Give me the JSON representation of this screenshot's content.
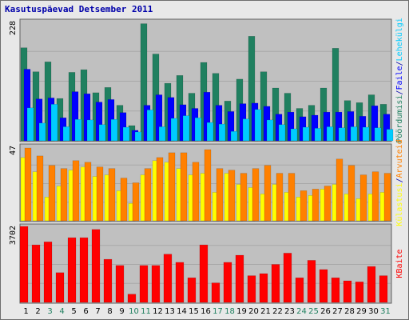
{
  "chart_data": {
    "type": "bar",
    "title": "Kasutuspäevad Detsember 2011",
    "categories": [
      "1",
      "2",
      "3",
      "4",
      "5",
      "6",
      "7",
      "8",
      "9",
      "10",
      "11",
      "12",
      "13",
      "14",
      "15",
      "16",
      "17",
      "18",
      "19",
      "20",
      "21",
      "22",
      "23",
      "24",
      "25",
      "26",
      "27",
      "28",
      "29",
      "30",
      "31"
    ],
    "weekend_days": [
      "3",
      "4",
      "10",
      "11",
      "17",
      "18",
      "24",
      "25",
      "31"
    ],
    "panels": [
      {
        "ymax_label": "228",
        "ymax": 228,
        "grid": true,
        "legend": [
          "Pöördumisi",
          "/",
          "Faile",
          "/",
          "Lehekülgi"
        ],
        "series": [
          {
            "name": "Pöördumisi",
            "color": "#208060",
            "values": [
              178,
              132,
              151,
              81,
              131,
              136,
              92,
              102,
              68,
              29,
              224,
              166,
              110,
              125,
              91,
              150,
              129,
              76,
              118,
              200,
              132,
              101,
              91,
              62,
              68,
              101,
              177,
              77,
              73,
              88,
              70
            ]
          },
          {
            "name": "Faile",
            "color": "#0000ff",
            "values": [
              137,
              80,
              82,
              44,
              94,
              90,
              74,
              79,
              54,
              20,
              68,
              88,
              83,
              69,
              62,
              93,
              68,
              56,
              71,
              72,
              66,
              51,
              55,
              46,
              49,
              55,
              55,
              56,
              47,
              67,
              51
            ]
          },
          {
            "name": "Lehekülgi",
            "color": "#00ccff",
            "values": [
              63,
              34,
              70,
              27,
              41,
              40,
              31,
              41,
              26,
              17,
              59,
              27,
              43,
              48,
              44,
              35,
              32,
              18,
              42,
              60,
              40,
              31,
              23,
              26,
              24,
              27,
              25,
              27,
              26,
              25,
              22
            ]
          }
        ]
      },
      {
        "ymax_label": "47",
        "ymax": 47,
        "grid": true,
        "legend": [
          "Külastusi",
          "/",
          "Arvuteid"
        ],
        "series": [
          {
            "name": "Külastusi",
            "color": "#ffff00",
            "values": [
              40,
              31,
              15,
              22,
              32,
              34,
              28,
              29,
              19,
              11,
              29,
              38,
              37,
              33,
              29,
              30,
              18,
              30,
              23,
              21,
              17,
              23,
              18,
              15,
              16,
              20,
              23,
              17,
              14,
              17,
              18
            ]
          },
          {
            "name": "Arvuteid",
            "color": "#ff8000",
            "values": [
              46,
              41,
              35,
              33,
              38,
              37,
              34,
              33,
              27,
              24,
              33,
              40,
              43,
              43,
              37,
              45,
              33,
              32,
              30,
              33,
              35,
              30,
              30,
              19,
              20,
              22,
              39,
              35,
              29,
              31,
              30
            ]
          }
        ]
      },
      {
        "ymax_label": "3702",
        "ymax": 3702,
        "grid": true,
        "legend": [
          "KBaite"
        ],
        "series": [
          {
            "name": "KBaite",
            "color": "#ff0000",
            "values": [
              3702,
              2802,
              2951,
              1451,
              3151,
              3151,
              3552,
              2101,
              1801,
              400,
              1801,
              1801,
              2351,
              1951,
              1201,
              2801,
              951,
              1951,
              2301,
              1301,
              1401,
              1851,
              2401,
              1201,
              2051,
              1601,
              1201,
              1051,
              1001,
              1751,
              1301
            ]
          }
        ]
      }
    ],
    "colors": {
      "background": "#e8e8e8",
      "plot": "#c0c0c0",
      "title": "#0000aa",
      "weekday_label": "#000000",
      "weekend_label": "#208060",
      "legend_separator": "#0000aa"
    }
  }
}
